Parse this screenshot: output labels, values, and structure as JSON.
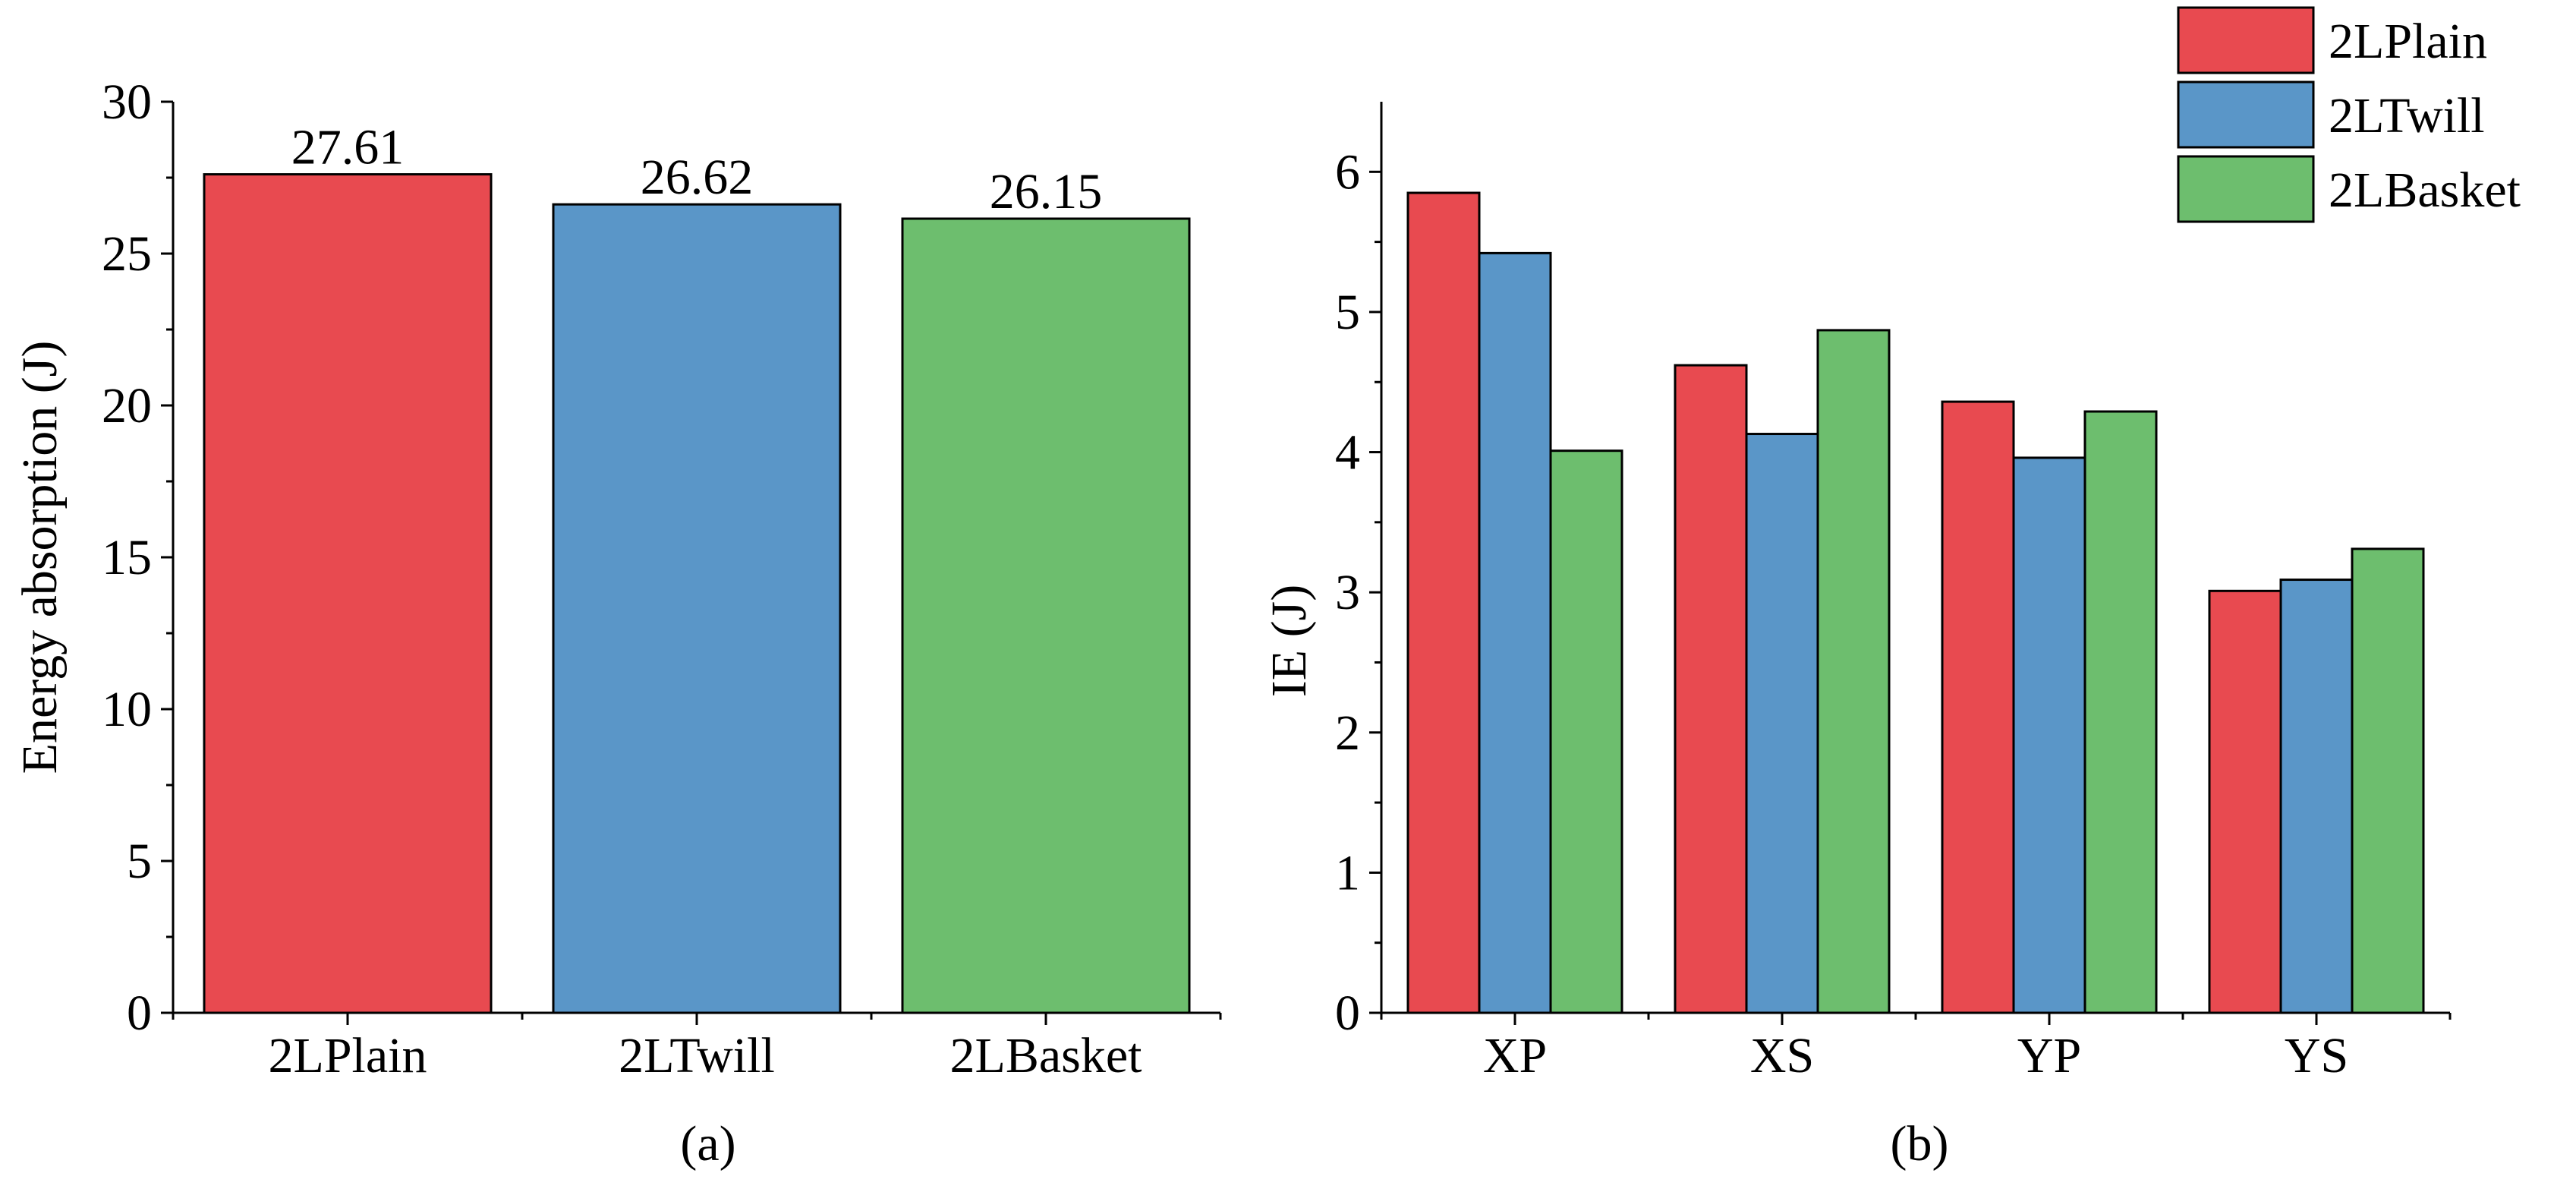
{
  "chart_data": [
    {
      "type": "bar",
      "panel_label": "(a)",
      "categories": [
        "2LPlain",
        "2LTwill",
        "2LBasket"
      ],
      "values": [
        27.61,
        26.62,
        26.15
      ],
      "data_labels": [
        "27.61",
        "26.62",
        "26.15"
      ],
      "colors": [
        "#E84A50",
        "#5A96C8",
        "#6DBE6E"
      ],
      "ylabel": "Energy absorption (J)",
      "xlabel": "",
      "ylim": [
        0,
        30
      ],
      "yticks": [
        0,
        5,
        10,
        15,
        20,
        25,
        30
      ],
      "grid": false
    },
    {
      "type": "bar",
      "panel_label": "(b)",
      "categories": [
        "XP",
        "XS",
        "YP",
        "YS"
      ],
      "series": [
        {
          "name": "2LPlain",
          "color": "#E84A50",
          "values": [
            5.85,
            4.62,
            4.36,
            3.01
          ]
        },
        {
          "name": "2LTwill",
          "color": "#5A96C8",
          "values": [
            5.42,
            4.13,
            3.96,
            3.09
          ]
        },
        {
          "name": "2LBasket",
          "color": "#6DBE6E",
          "values": [
            4.01,
            4.87,
            4.29,
            3.31
          ]
        }
      ],
      "ylabel": "IE (J)",
      "xlabel": "",
      "ylim": [
        0,
        6.5
      ],
      "yticks": [
        0,
        1,
        2,
        3,
        4,
        5,
        6
      ],
      "grid": false,
      "legend_position": "top-right"
    }
  ]
}
